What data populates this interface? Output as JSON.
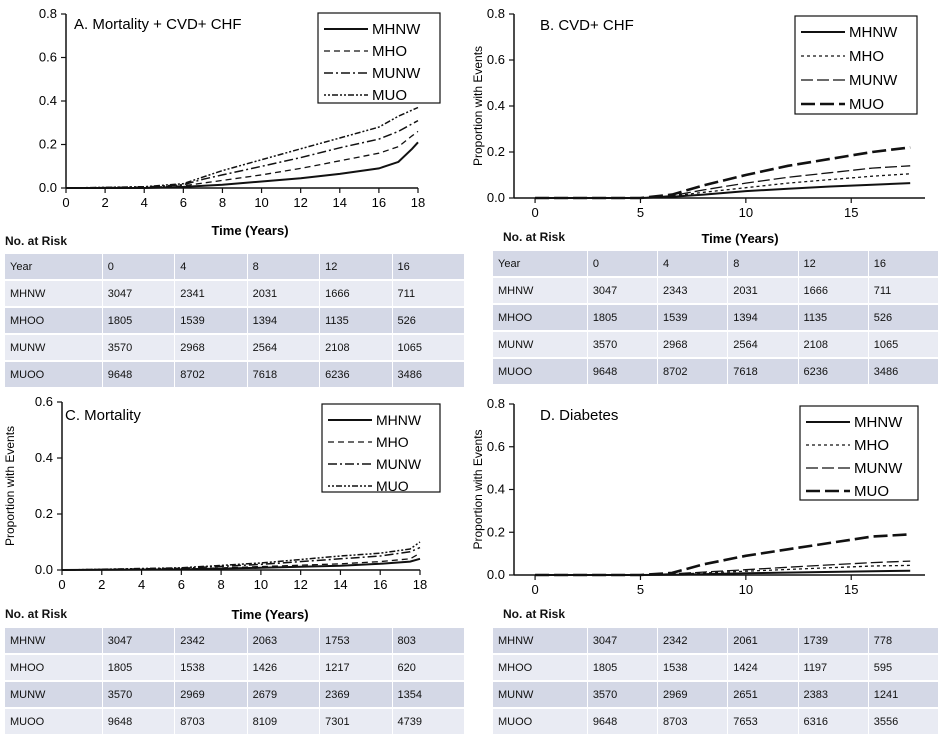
{
  "chart_data": [
    {
      "type": "line",
      "title": "A. Mortality + CVD+ CHF",
      "xlabel": "Time (Years)",
      "ylabel": "",
      "xlim": [
        0,
        18
      ],
      "ylim": [
        0,
        0.8
      ],
      "x_ticks": [
        "0",
        "2",
        "4",
        "6",
        "8",
        "10",
        "12",
        "14",
        "16",
        "18"
      ],
      "y_ticks": [
        "0.0",
        "0.2",
        "0.4",
        "0.6",
        "0.8"
      ],
      "legend_position": "top-right",
      "series": [
        {
          "name": "MHNW",
          "style": "solid",
          "points": [
            [
              0,
              0
            ],
            [
              4,
              0
            ],
            [
              6,
              0.005
            ],
            [
              8,
              0.015
            ],
            [
              10,
              0.03
            ],
            [
              12,
              0.045
            ],
            [
              14,
              0.065
            ],
            [
              16,
              0.09
            ],
            [
              17,
              0.12
            ],
            [
              17.7,
              0.18
            ],
            [
              18,
              0.21
            ]
          ]
        },
        {
          "name": "MHO",
          "style": "dash",
          "points": [
            [
              0,
              0
            ],
            [
              4,
              0.002
            ],
            [
              6,
              0.01
            ],
            [
              8,
              0.035
            ],
            [
              10,
              0.06
            ],
            [
              12,
              0.09
            ],
            [
              14,
              0.125
            ],
            [
              16,
              0.16
            ],
            [
              17,
              0.19
            ],
            [
              17.7,
              0.24
            ],
            [
              18,
              0.26
            ]
          ]
        },
        {
          "name": "MUNW",
          "style": "dashdot",
          "points": [
            [
              0,
              0
            ],
            [
              4,
              0.004
            ],
            [
              6,
              0.015
            ],
            [
              7,
              0.04
            ],
            [
              8,
              0.06
            ],
            [
              10,
              0.1
            ],
            [
              12,
              0.14
            ],
            [
              14,
              0.185
            ],
            [
              16,
              0.225
            ],
            [
              17,
              0.26
            ],
            [
              18,
              0.31
            ]
          ]
        },
        {
          "name": "MUO",
          "style": "dotdash",
          "points": [
            [
              0,
              0
            ],
            [
              4,
              0.006
            ],
            [
              6,
              0.02
            ],
            [
              7,
              0.05
            ],
            [
              8,
              0.08
            ],
            [
              10,
              0.13
            ],
            [
              12,
              0.18
            ],
            [
              14,
              0.23
            ],
            [
              16,
              0.28
            ],
            [
              17,
              0.33
            ],
            [
              18,
              0.37
            ]
          ]
        }
      ]
    },
    {
      "type": "line",
      "title": "B. CVD+ CHF",
      "xlabel": "Time (Years)",
      "ylabel": "Proportion with Events",
      "xlim": [
        -1,
        18.5
      ],
      "ylim": [
        0,
        0.8
      ],
      "x_ticks": [
        "0",
        "5",
        "10",
        "15"
      ],
      "y_ticks": [
        "0.0",
        "0.2",
        "0.4",
        "0.6",
        "0.8"
      ],
      "legend_position": "top-right",
      "series": [
        {
          "name": "MHNW",
          "style": "solid",
          "points": [
            [
              0,
              0
            ],
            [
              5,
              0
            ],
            [
              6.5,
              0.005
            ],
            [
              8,
              0.015
            ],
            [
              10,
              0.03
            ],
            [
              12,
              0.04
            ],
            [
              14,
              0.05
            ],
            [
              16,
              0.058
            ],
            [
              17.8,
              0.065
            ]
          ]
        },
        {
          "name": "MHO",
          "style": "dot",
          "points": [
            [
              0,
              0
            ],
            [
              5,
              0
            ],
            [
              6.5,
              0.008
            ],
            [
              8,
              0.025
            ],
            [
              10,
              0.045
            ],
            [
              12,
              0.065
            ],
            [
              14,
              0.08
            ],
            [
              16,
              0.095
            ],
            [
              17.8,
              0.105
            ]
          ]
        },
        {
          "name": "MUNW",
          "style": "longdash",
          "points": [
            [
              0,
              0
            ],
            [
              5,
              0
            ],
            [
              6.5,
              0.01
            ],
            [
              8,
              0.035
            ],
            [
              10,
              0.065
            ],
            [
              12,
              0.09
            ],
            [
              14,
              0.11
            ],
            [
              16,
              0.13
            ],
            [
              17.8,
              0.14
            ]
          ]
        },
        {
          "name": "MUO",
          "style": "heavydash",
          "points": [
            [
              0,
              0
            ],
            [
              5,
              0
            ],
            [
              6.5,
              0.015
            ],
            [
              8,
              0.055
            ],
            [
              10,
              0.1
            ],
            [
              12,
              0.14
            ],
            [
              14,
              0.17
            ],
            [
              16,
              0.2
            ],
            [
              17.8,
              0.22
            ]
          ]
        }
      ]
    },
    {
      "type": "line",
      "title": "C. Mortality",
      "xlabel": "Time (Years)",
      "ylabel": "Proportion with Events",
      "xlim": [
        0,
        18
      ],
      "ylim": [
        0,
        0.6
      ],
      "x_ticks": [
        "0",
        "2",
        "4",
        "6",
        "8",
        "10",
        "12",
        "14",
        "16",
        "18"
      ],
      "y_ticks": [
        "0.0",
        "0.2",
        "0.4",
        "0.6"
      ],
      "legend_position": "top-right",
      "series": [
        {
          "name": "MHNW",
          "style": "solid",
          "points": [
            [
              0,
              0
            ],
            [
              6,
              0.002
            ],
            [
              10,
              0.008
            ],
            [
              14,
              0.015
            ],
            [
              16,
              0.022
            ],
            [
              17.5,
              0.03
            ],
            [
              18,
              0.04
            ]
          ]
        },
        {
          "name": "MHO",
          "style": "dash",
          "points": [
            [
              0,
              0
            ],
            [
              6,
              0.003
            ],
            [
              10,
              0.012
            ],
            [
              14,
              0.022
            ],
            [
              16,
              0.03
            ],
            [
              17.5,
              0.04
            ],
            [
              18,
              0.06
            ]
          ]
        },
        {
          "name": "MUNW",
          "style": "dashdot",
          "points": [
            [
              0,
              0
            ],
            [
              6,
              0.006
            ],
            [
              10,
              0.02
            ],
            [
              14,
              0.04
            ],
            [
              16,
              0.05
            ],
            [
              17.5,
              0.065
            ],
            [
              18,
              0.08
            ]
          ]
        },
        {
          "name": "MUO",
          "style": "dotdash",
          "points": [
            [
              0,
              0
            ],
            [
              6,
              0.008
            ],
            [
              10,
              0.025
            ],
            [
              14,
              0.05
            ],
            [
              16,
              0.06
            ],
            [
              17.5,
              0.075
            ],
            [
              18,
              0.1
            ]
          ]
        }
      ]
    },
    {
      "type": "line",
      "title": "D. Diabetes",
      "xlabel": "",
      "ylabel": "Proportion with Events",
      "xlim": [
        -1,
        18.5
      ],
      "ylim": [
        0,
        0.8
      ],
      "x_ticks": [
        "0",
        "5",
        "10",
        "15"
      ],
      "y_ticks": [
        "0.0",
        "0.2",
        "0.4",
        "0.6",
        "0.8"
      ],
      "legend_position": "top-right",
      "series": [
        {
          "name": "MHNW",
          "style": "solid",
          "points": [
            [
              0,
              0
            ],
            [
              5,
              0
            ],
            [
              7,
              0.002
            ],
            [
              10,
              0.008
            ],
            [
              13,
              0.013
            ],
            [
              16,
              0.018
            ],
            [
              17.8,
              0.02
            ]
          ]
        },
        {
          "name": "MHO",
          "style": "dot",
          "points": [
            [
              0,
              0
            ],
            [
              5,
              0
            ],
            [
              7,
              0.005
            ],
            [
              10,
              0.018
            ],
            [
              13,
              0.03
            ],
            [
              16,
              0.042
            ],
            [
              17.8,
              0.045
            ]
          ]
        },
        {
          "name": "MUNW",
          "style": "longdash",
          "points": [
            [
              0,
              0
            ],
            [
              5,
              0
            ],
            [
              7,
              0.008
            ],
            [
              10,
              0.025
            ],
            [
              13,
              0.042
            ],
            [
              16,
              0.058
            ],
            [
              17.8,
              0.065
            ]
          ]
        },
        {
          "name": "MUO",
          "style": "heavydash",
          "points": [
            [
              0,
              0
            ],
            [
              5,
              0
            ],
            [
              6.5,
              0.01
            ],
            [
              8,
              0.05
            ],
            [
              10,
              0.09
            ],
            [
              12,
              0.12
            ],
            [
              14,
              0.15
            ],
            [
              16,
              0.18
            ],
            [
              17.8,
              0.19
            ]
          ]
        }
      ]
    }
  ],
  "risk_tables": [
    {
      "label": "No. at Risk",
      "rows": [
        [
          "Year",
          "0",
          "4",
          "8",
          "12",
          "16"
        ],
        [
          "MHNW",
          "3047",
          "2341",
          "2031",
          "1666",
          "711"
        ],
        [
          "MHOO",
          "1805",
          "1539",
          "1394",
          "1135",
          "526"
        ],
        [
          "MUNW",
          "3570",
          "2968",
          "2564",
          "2108",
          "1065"
        ],
        [
          "MUOO",
          "9648",
          "8702",
          "7618",
          "6236",
          "3486"
        ]
      ]
    },
    {
      "label": "No. at Risk",
      "rows": [
        [
          "Year",
          "0",
          "4",
          "8",
          "12",
          "16"
        ],
        [
          "MHNW",
          "3047",
          "2343",
          "2031",
          "1666",
          "711"
        ],
        [
          "MHOO",
          "1805",
          "1539",
          "1394",
          "1135",
          "526"
        ],
        [
          "MUNW",
          "3570",
          "2968",
          "2564",
          "2108",
          "1065"
        ],
        [
          "MUOO",
          "9648",
          "8702",
          "7618",
          "6236",
          "3486"
        ]
      ]
    },
    {
      "label": "No. at Risk",
      "rows": [
        [
          "MHNW",
          "3047",
          "2342",
          "2063",
          "1753",
          "803"
        ],
        [
          "MHOO",
          "1805",
          "1538",
          "1426",
          "1217",
          "620"
        ],
        [
          "MUNW",
          "3570",
          "2969",
          "2679",
          "2369",
          "1354"
        ],
        [
          "MUOO",
          "9648",
          "8703",
          "8109",
          "7301",
          "4739"
        ]
      ]
    },
    {
      "label": "No. at Risk",
      "rows": [
        [
          "MHNW",
          "3047",
          "2342",
          "2061",
          "1739",
          "778"
        ],
        [
          "MHOO",
          "1805",
          "1538",
          "1424",
          "1197",
          "595"
        ],
        [
          "MUNW",
          "3570",
          "2969",
          "2651",
          "2383",
          "1241"
        ],
        [
          "MUOO",
          "9648",
          "8703",
          "7653",
          "6316",
          "3556"
        ]
      ]
    }
  ]
}
